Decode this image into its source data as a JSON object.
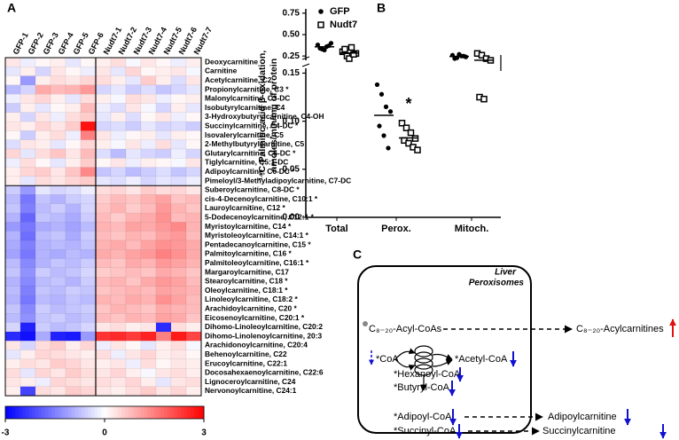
{
  "panel_labels": [
    "A",
    "B",
    "C"
  ],
  "chart_data": [
    {
      "type": "heatmap",
      "columns": [
        "GFP-1",
        "GFP-2",
        "GFP-3",
        "GFP-4",
        "GFP-5",
        "GFP-6",
        "Nudt7-1",
        "Nudt7-2",
        "Nudt7-3",
        "Nudt7-4",
        "Nudt7-5",
        "Nudt7-6",
        "Nudt7-7"
      ],
      "rows": [
        "Deoxycarnitine",
        "Carnitine",
        "Acetylcarnitine, C2",
        "Propionylcarnitine, C3 *",
        "Malonylcarnitine, C3-DC",
        "Isobutyrylcarnitine, C4",
        "3-Hydroxybutyrylcarnitine, C4-OH",
        "Succinylcarnitine, C4-DC *",
        "Isovalerylcarnitine, C5",
        "2-Methylbutyrylcarnitine, C5",
        "Glutarylcarnitine, C5-DC *",
        "Tiglylcarnitine, C5:1-DC",
        "Adipoylcarnitine, C6-DC *",
        "Pimeloyl/3-Methyladipoylcarnitine, C7-DC",
        "Suberoylcarnitine, C8-DC *",
        "cis-4-Decenoylcarnitine, C10:1 *",
        "Lauroylcarnitine, C12 *",
        "5-Dodecenoylcarnitine, C12:1 *",
        "Myristoylcarnitine, C14 *",
        "Myristoleoylcarnitine, C14:1 *",
        "Pentadecanoylcarnitine, C15 *",
        "Palmitoylcarnitine, C16 *",
        "Palmitoleoylcarnitine, C16:1 *",
        "Margaroylcarnitine, C17",
        "Stearoylcarnitine, C18 *",
        "Oleoylcarnitine, C18:1 *",
        "Linoleoylcarnitine, C18:2 *",
        "Arachidoylcarnitine, C20 *",
        "Eicosenoylcarnitine, C20:1 *",
        "Dihomo-Linoleoylcarnitine, C20:2",
        "Dihomo-Linolenoylcarnitine, 20:3",
        "Arachidonoylcarnitine, C20:4",
        "Behenoylcarnitine, C22",
        "Erucoylcarnitine, C22:1",
        "Docosahexaenoylcarnitine, C22:6",
        "Lignoceroylcarnitine, C24",
        "Nervonoylcarnitine, C24:1"
      ],
      "values": [
        [
          0.3,
          -0.2,
          0.1,
          0.2,
          -0.3,
          0.1,
          0.2,
          0.4,
          -0.1,
          0.3,
          0.1,
          -0.2,
          0.2
        ],
        [
          -0.3,
          0.2,
          -0.5,
          0.3,
          0.1,
          -0.2,
          0.3,
          -0.3,
          0.5,
          0.1,
          0.2,
          0.3,
          -0.1
        ],
        [
          0.1,
          -1.2,
          0.2,
          0.4,
          0.3,
          0.5,
          0.4,
          0.2,
          -0.3,
          0.6,
          0.2,
          -0.4,
          0.3
        ],
        [
          -0.8,
          -0.5,
          1.0,
          0.8,
          0.9,
          1.2,
          -0.5,
          -0.3,
          -0.6,
          -0.4,
          -0.7,
          -0.5,
          -0.3
        ],
        [
          -0.2,
          0.3,
          0.5,
          0.2,
          -0.3,
          0.4,
          0.2,
          -0.1,
          0.4,
          0.3,
          -0.2,
          0.1,
          0.2
        ],
        [
          -0.6,
          0.2,
          -0.3,
          0.1,
          0.2,
          0.8,
          -0.2,
          -0.4,
          0.3,
          -0.1,
          -0.5,
          0.2,
          -0.3
        ],
        [
          0.2,
          -0.5,
          0.3,
          -0.2,
          0.4,
          0.6,
          -0.3,
          0.2,
          -0.4,
          0.1,
          0.3,
          -0.2,
          0.1
        ],
        [
          0.3,
          0.2,
          0.5,
          0.3,
          0.6,
          2.8,
          -0.5,
          -0.4,
          -0.6,
          -0.3,
          -0.5,
          -0.4,
          -0.6
        ],
        [
          0.1,
          -0.6,
          0.2,
          0.4,
          -0.2,
          1.5,
          0.3,
          -0.2,
          0.1,
          0.2,
          -0.3,
          0.2,
          0.1
        ],
        [
          -0.4,
          0.3,
          0.2,
          -0.3,
          0.1,
          0.5,
          0.2,
          -0.1,
          0.3,
          -0.2,
          0.4,
          -0.3,
          0.1
        ],
        [
          0.5,
          -0.3,
          0.4,
          0.7,
          0.3,
          0.8,
          -0.4,
          -0.8,
          -0.3,
          -0.5,
          -0.6,
          -0.2,
          -0.5
        ],
        [
          -0.2,
          0.4,
          0.1,
          -0.3,
          0.2,
          0.6,
          0.1,
          0.3,
          -0.2,
          0.2,
          0.1,
          -0.1,
          0.3
        ],
        [
          0.2,
          0.5,
          0.6,
          0.3,
          0.7,
          1.4,
          -0.7,
          -0.5,
          -0.8,
          -0.6,
          -0.4,
          -0.7,
          -0.5
        ],
        [
          0.2,
          -0.3,
          0.4,
          0.3,
          0.5,
          0.6,
          -0.3,
          -0.4,
          -0.2,
          -0.5,
          -0.3,
          -0.4,
          -0.2
        ],
        [
          -0.6,
          -1.2,
          -0.3,
          -0.5,
          -0.4,
          -0.2,
          0.4,
          0.5,
          0.3,
          0.6,
          0.4,
          0.5,
          0.3
        ],
        [
          -0.8,
          -1.6,
          -0.7,
          -0.9,
          -0.6,
          -0.5,
          0.6,
          0.8,
          0.7,
          0.9,
          1.1,
          0.7,
          0.8
        ],
        [
          -0.7,
          -1.5,
          -0.8,
          -0.6,
          -0.9,
          -0.5,
          0.7,
          0.9,
          0.6,
          0.8,
          1.2,
          0.9,
          0.7
        ],
        [
          -0.9,
          -1.8,
          -0.7,
          -0.8,
          -1.0,
          -0.6,
          0.8,
          0.6,
          0.9,
          1.0,
          1.3,
          0.8,
          0.9
        ],
        [
          -1.2,
          -1.6,
          -1.0,
          -0.9,
          -1.1,
          -0.8,
          0.9,
          0.8,
          1.1,
          1.0,
          1.2,
          1.4,
          0.9
        ],
        [
          -0.9,
          -1.7,
          -0.8,
          -0.7,
          -1.0,
          -0.6,
          0.8,
          0.7,
          0.9,
          0.8,
          1.1,
          1.2,
          0.8
        ],
        [
          -1.0,
          -1.5,
          -0.9,
          -0.8,
          -0.9,
          -0.7,
          0.9,
          1.0,
          0.8,
          1.1,
          1.3,
          1.2,
          1.0
        ],
        [
          -1.1,
          -1.6,
          -0.9,
          -1.0,
          -0.8,
          -0.9,
          1.0,
          0.9,
          1.1,
          1.2,
          1.5,
          1.3,
          1.0
        ],
        [
          -0.8,
          -1.4,
          -0.9,
          -0.7,
          -0.8,
          -0.6,
          0.8,
          0.7,
          1.0,
          0.9,
          1.2,
          1.1,
          0.9
        ],
        [
          -0.7,
          -1.3,
          -0.6,
          -0.8,
          -0.7,
          -0.5,
          0.6,
          0.7,
          0.8,
          0.7,
          1.0,
          0.9,
          0.7
        ],
        [
          -0.9,
          -1.4,
          -0.8,
          -0.7,
          -0.9,
          -0.6,
          0.8,
          0.9,
          0.7,
          1.0,
          1.2,
          1.1,
          0.8
        ],
        [
          -0.8,
          -1.5,
          -0.7,
          -0.8,
          -0.6,
          -0.7,
          0.7,
          0.8,
          0.9,
          0.8,
          1.1,
          1.0,
          0.9
        ],
        [
          -0.9,
          -1.6,
          -0.8,
          -0.9,
          -0.7,
          -0.8,
          0.9,
          0.8,
          1.0,
          0.9,
          1.3,
          1.1,
          0.8
        ],
        [
          -0.7,
          -1.4,
          -0.6,
          -0.8,
          -0.7,
          -0.6,
          0.7,
          0.9,
          0.8,
          0.7,
          1.0,
          0.9,
          0.8
        ],
        [
          -0.8,
          -1.3,
          -0.7,
          -0.6,
          -0.8,
          -0.7,
          0.8,
          0.7,
          0.9,
          0.8,
          1.1,
          1.0,
          0.7
        ],
        [
          -0.5,
          -2.6,
          -0.6,
          -0.8,
          -0.7,
          -0.5,
          0.3,
          0.4,
          0.2,
          0.3,
          -2.5,
          0.4,
          0.2
        ],
        [
          -2.5,
          -2.8,
          -1.0,
          -2.6,
          -2.7,
          -1.2,
          2.4,
          2.5,
          2.3,
          2.6,
          1.5,
          2.7,
          2.2
        ],
        [
          0.3,
          -0.5,
          0.4,
          0.6,
          0.2,
          0.5,
          -0.2,
          0.3,
          0.1,
          -0.3,
          0.2,
          0.4,
          -0.1
        ],
        [
          -0.3,
          0.2,
          0.5,
          0.4,
          0.3,
          0.2,
          0.4,
          -0.2,
          0.3,
          0.5,
          0.2,
          0.3,
          0.1
        ],
        [
          0.2,
          0.4,
          0.3,
          0.6,
          0.5,
          0.3,
          0.2,
          0.3,
          -0.2,
          0.4,
          0.1,
          0.3,
          0.2
        ],
        [
          0.4,
          -0.3,
          0.5,
          0.3,
          0.6,
          0.4,
          0.3,
          0.5,
          0.2,
          -0.1,
          0.3,
          0.4,
          0.2
        ],
        [
          0.3,
          0.2,
          -0.2,
          0.5,
          0.4,
          0.3,
          0.4,
          0.3,
          0.5,
          0.2,
          -0.3,
          0.3,
          0.4
        ],
        [
          0.2,
          -2.2,
          0.4,
          0.3,
          0.6,
          0.5,
          0.3,
          0.2,
          0.4,
          0.6,
          0.3,
          0.5,
          0.2
        ]
      ],
      "colorbar": {
        "lim": [
          -3,
          3
        ],
        "ticks": [
          -3,
          0,
          3
        ],
        "colors": [
          "#0000ff",
          "#ffffff",
          "#ff0000"
        ]
      }
    },
    {
      "type": "dot",
      "ylabel": [
        "¹⁴C-Palmitic acid β-oxidation,",
        "nmoles/min/mg of protein"
      ],
      "categories": [
        "Total",
        "Perox.",
        "Mitoch."
      ],
      "segments": [
        {
          "ylim": [
            0,
            0.155
          ],
          "yticks": [
            {
              "value": 0,
              "label": "0.00"
            },
            0.05,
            {
              "value": 0.1,
              "label": "0.10"
            },
            0.15
          ]
        },
        {
          "ylim": [
            0.2,
            0.8
          ],
          "yticks": [
            0.25,
            {
              "value": 0.5,
              "label": "0.50"
            },
            0.75
          ]
        }
      ],
      "series": [
        {
          "name": "GFP",
          "color": "#000000",
          "marker": "circle",
          "values": [
            [
              0.38,
              0.33,
              0.36,
              0.4,
              0.34,
              0.32,
              0.37
            ],
            [
              0.138,
              0.128,
              0.115,
              0.11,
              0.095,
              0.085,
              0.072
            ],
            [
              0.26,
              0.23,
              0.25,
              0.24,
              0.22,
              0.27,
              0.25
            ]
          ]
        },
        {
          "name": "Nudt7",
          "color": "#000000",
          "marker": "square",
          "values": [
            [
              0.3,
              0.25,
              0.35,
              0.28,
              0.33,
              0.22,
              0.27
            ],
            [
              0.098,
              0.093,
              0.088,
              0.082,
              0.08,
              0.077,
              0.073,
              0.07
            ],
            [
              0.28,
              0.26,
              0.22,
              0.2,
              0.125,
              0.123
            ]
          ]
        }
      ],
      "annotation": "*"
    }
  ],
  "diagram": {
    "compartment": [
      "Liver",
      "Peroxisomes"
    ],
    "nodes": [
      "C₈₋₂₀-Acyl-CoAs",
      "C₈₋₂₀-Acylcarnitines",
      "*CoA",
      "*Acetyl-CoA",
      "*Hexanoyl-CoA",
      "*Butyryl-CoA",
      "*Adipoyl-CoA",
      "*Succinyl-CoA",
      "Adipoylcarnitine",
      "Succinylcarnitine"
    ]
  }
}
